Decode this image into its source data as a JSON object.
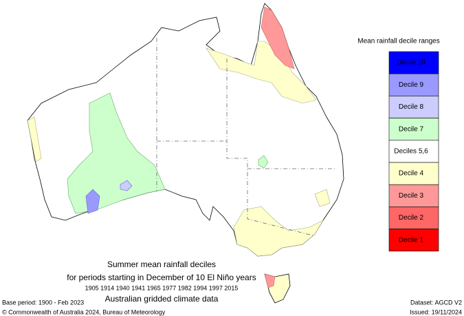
{
  "legend": {
    "title": "Mean rainfall decile ranges",
    "items": [
      {
        "label": "Decile 10",
        "color": "#0000ff"
      },
      {
        "label": "Decile 9",
        "color": "#9999ff"
      },
      {
        "label": "Decile 8",
        "color": "#ccccff"
      },
      {
        "label": "Decile 7",
        "color": "#ccffcc"
      },
      {
        "label": "Deciles 5,6",
        "color": "#ffffff"
      },
      {
        "label": "Decile 4",
        "color": "#ffffcc"
      },
      {
        "label": "Decile 3",
        "color": "#ff9999"
      },
      {
        "label": "Decile 2",
        "color": "#ff6666"
      },
      {
        "label": "Decile 1",
        "color": "#ff0000"
      }
    ]
  },
  "title": {
    "lines": [
      "Summer mean rainfall deciles",
      "for periods starting in December of 10 El Niño years",
      "1905 1914 1940 1941 1965 1977 1982 1994 1997 2015",
      "Australian gridded climate data"
    ]
  },
  "footer": {
    "base_period": "Base period: 1900 - Feb 2023",
    "copyright": "© Commonwealth of Australia 2024, Bureau of Meteorology",
    "dataset": "Dataset: AGCD V2",
    "issued": "Issued: 19/11/2024"
  }
}
